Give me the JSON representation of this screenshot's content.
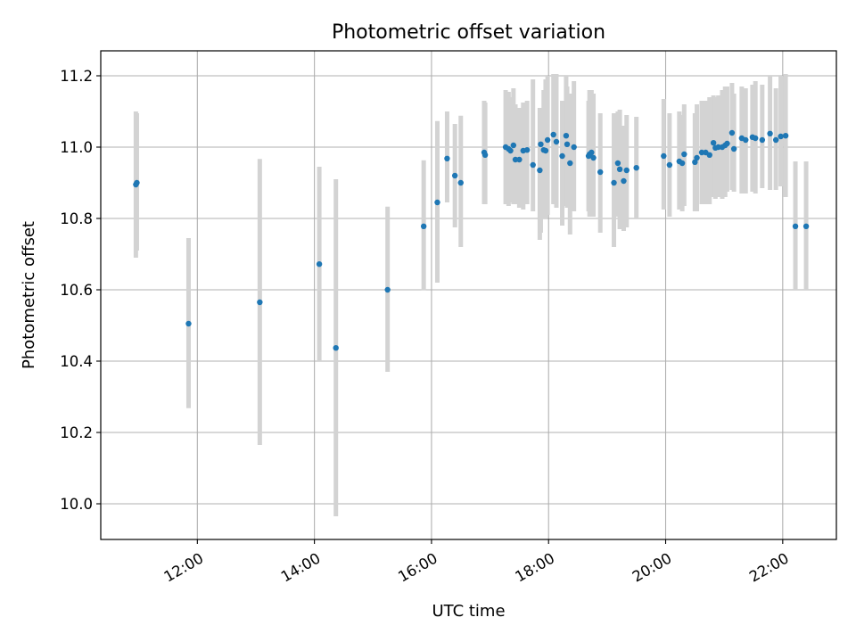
{
  "chart_data": {
    "type": "scatter",
    "title": "Photometric offset variation",
    "xlabel": "UTC time",
    "ylabel": "Photometric offset",
    "x_unit": "UTC time (HH:MM, same day)",
    "xlim": [
      "10:21",
      "22:55"
    ],
    "ylim": [
      9.9,
      11.27
    ],
    "x_ticks": [
      "12:00",
      "14:00",
      "16:00",
      "18:00",
      "20:00",
      "22:00"
    ],
    "y_ticks": [
      "10.0",
      "10.2",
      "10.4",
      "10.6",
      "10.8",
      "11.0",
      "11.2"
    ],
    "grid": true,
    "x_tick_rotation": "30 degrees",
    "colors": {
      "marker": "#1f77b4",
      "errorbar": "#d3d3d3"
    },
    "series": [
      {
        "x": [
          "10:57",
          "10:58",
          "11:51",
          "13:04",
          "14:05",
          "14:22",
          "15:15",
          "15:52",
          "16:06",
          "16:16",
          "16:24",
          "16:30",
          "16:54",
          "16:55",
          "17:16",
          "17:19",
          "17:21",
          "17:24",
          "17:26",
          "17:30",
          "17:34",
          "17:38",
          "17:44",
          "17:51",
          "17:52",
          "17:55",
          "17:57",
          "17:59",
          "18:05",
          "18:08",
          "18:14",
          "18:18",
          "18:19",
          "18:22",
          "18:26",
          "18:41",
          "18:42",
          "18:44",
          "18:46",
          "18:53",
          "19:07",
          "19:11",
          "19:13",
          "19:17",
          "19:20",
          "19:30",
          "19:58",
          "20:04",
          "20:14",
          "20:17",
          "20:19",
          "20:30",
          "20:32",
          "20:37",
          "20:41",
          "20:45",
          "20:49",
          "20:51",
          "20:54",
          "20:58",
          "21:01",
          "21:03",
          "21:08",
          "21:10",
          "21:18",
          "21:22",
          "21:29",
          "21:32",
          "21:39",
          "21:47",
          "21:53",
          "21:58",
          "22:03",
          "22:13",
          "22:24"
        ],
        "y": [
          10.895,
          10.9,
          10.505,
          10.565,
          10.672,
          10.437,
          10.6,
          10.778,
          10.845,
          10.968,
          10.92,
          10.9,
          10.985,
          10.978,
          11.0,
          10.995,
          10.99,
          11.005,
          10.965,
          10.965,
          10.99,
          10.992,
          10.95,
          10.935,
          11.008,
          10.992,
          10.99,
          11.02,
          11.035,
          11.015,
          10.975,
          11.032,
          11.008,
          10.955,
          11.0,
          10.975,
          10.98,
          10.985,
          10.97,
          10.93,
          10.9,
          10.955,
          10.938,
          10.905,
          10.935,
          10.942,
          10.975,
          10.95,
          10.96,
          10.955,
          10.98,
          10.958,
          10.97,
          10.985,
          10.985,
          10.978,
          11.012,
          10.998,
          11.0,
          11.0,
          11.005,
          11.01,
          11.04,
          10.995,
          11.025,
          11.02,
          11.028,
          11.025,
          11.02,
          11.038,
          11.02,
          11.03,
          11.032,
          10.778,
          10.778
        ],
        "err_low": [
          10.69,
          10.71,
          10.268,
          10.165,
          10.4,
          9.965,
          10.37,
          10.598,
          10.62,
          10.845,
          10.775,
          10.72,
          10.84,
          10.84,
          10.84,
          10.835,
          10.845,
          10.84,
          10.84,
          10.83,
          10.825,
          10.84,
          10.82,
          10.74,
          10.76,
          10.8,
          10.8,
          10.81,
          10.84,
          10.83,
          10.78,
          10.835,
          10.83,
          10.755,
          10.82,
          10.82,
          10.805,
          10.805,
          10.805,
          10.76,
          10.72,
          10.805,
          10.77,
          10.765,
          10.775,
          10.8,
          10.825,
          10.805,
          10.825,
          10.82,
          10.835,
          10.82,
          10.82,
          10.84,
          10.84,
          10.84,
          10.86,
          10.855,
          10.86,
          10.855,
          10.86,
          10.875,
          10.88,
          10.875,
          10.87,
          10.87,
          10.875,
          10.87,
          10.885,
          10.88,
          10.88,
          10.89,
          10.86,
          10.6,
          10.6
        ],
        "err_high": [
          11.1,
          11.095,
          10.745,
          10.967,
          10.945,
          10.91,
          10.833,
          10.963,
          11.073,
          11.1,
          11.065,
          11.088,
          11.13,
          11.125,
          11.16,
          11.155,
          11.14,
          11.165,
          11.12,
          11.11,
          11.125,
          11.13,
          11.19,
          11.11,
          11.11,
          11.16,
          11.19,
          11.2,
          11.205,
          11.205,
          11.13,
          11.2,
          11.17,
          11.15,
          11.185,
          11.13,
          11.16,
          11.16,
          11.15,
          11.095,
          11.095,
          11.1,
          11.105,
          11.06,
          11.09,
          11.085,
          11.135,
          11.095,
          11.1,
          11.09,
          11.12,
          11.095,
          11.12,
          11.13,
          11.13,
          11.14,
          11.145,
          11.14,
          11.145,
          11.16,
          11.17,
          11.17,
          11.18,
          11.15,
          11.17,
          11.165,
          11.175,
          11.185,
          11.175,
          11.2,
          11.165,
          11.2,
          11.205,
          10.96,
          10.96
        ]
      }
    ]
  }
}
